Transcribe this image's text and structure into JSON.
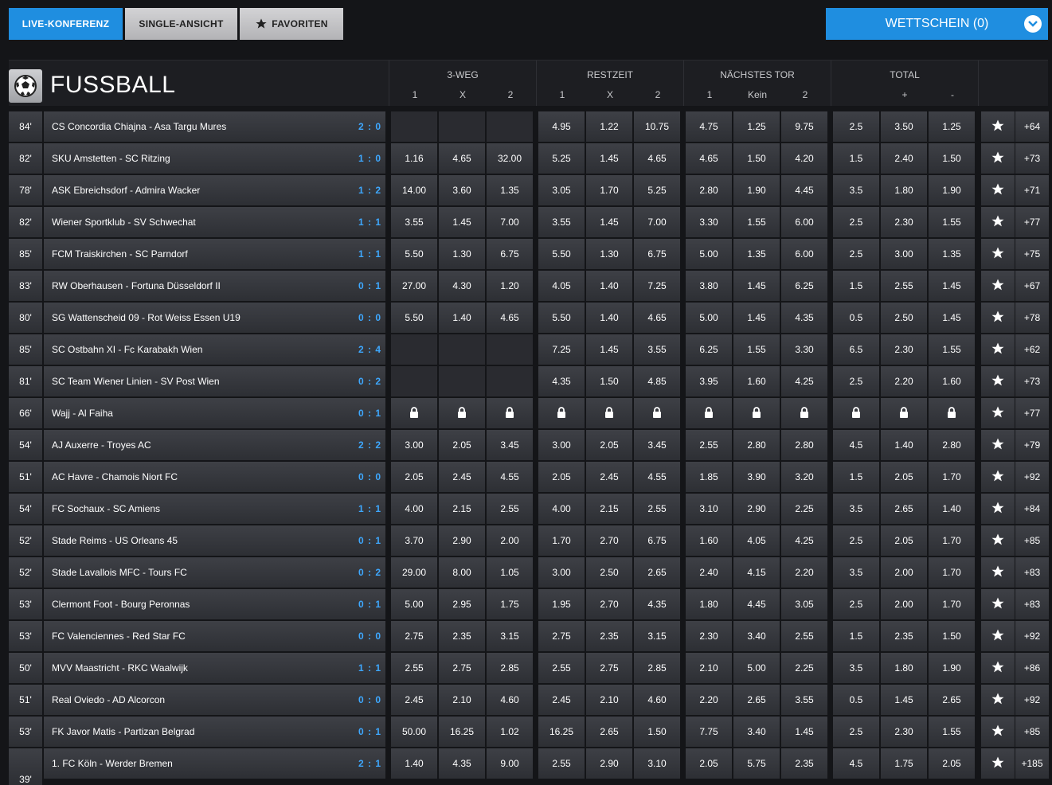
{
  "tabs": [
    {
      "label": "LIVE-KONFERENZ",
      "active": true
    },
    {
      "label": "SINGLE-ANSICHT",
      "active": false
    },
    {
      "label": "FAVORITEN",
      "active": false,
      "icon": "star-icon"
    }
  ],
  "betslip": {
    "label": "WETTSCHEIN (0)",
    "icon": "chevron-down-icon"
  },
  "sport": {
    "title": "FUSSBALL",
    "icon": "soccer-ball-icon"
  },
  "markets": [
    {
      "title": "3-WEG",
      "cols": [
        "1",
        "X",
        "2"
      ]
    },
    {
      "title": "RESTZEIT",
      "cols": [
        "1",
        "X",
        "2"
      ]
    },
    {
      "title": "NÄCHSTES TOR",
      "cols": [
        "1",
        "Kein",
        "2"
      ]
    },
    {
      "title": "TOTAL",
      "cols": [
        "+",
        "-"
      ]
    }
  ],
  "matches": [
    {
      "minute": "84'",
      "teams": "CS Concordia Chiajna - Asa Targu Mures",
      "score": "2 : 0",
      "odds": [
        "",
        "",
        "",
        "4.95",
        "1.22",
        "10.75",
        "4.75",
        "1.25",
        "9.75",
        "2.5",
        "3.50",
        "1.25"
      ],
      "more": "+64"
    },
    {
      "minute": "82'",
      "teams": "SKU Amstetten - SC Ritzing",
      "score": "1 : 0",
      "odds": [
        "1.16",
        "4.65",
        "32.00",
        "5.25",
        "1.45",
        "4.65",
        "4.65",
        "1.50",
        "4.20",
        "1.5",
        "2.40",
        "1.50"
      ],
      "more": "+73"
    },
    {
      "minute": "78'",
      "teams": "ASK Ebreichsdorf - Admira Wacker",
      "score": "1 : 2",
      "odds": [
        "14.00",
        "3.60",
        "1.35",
        "3.05",
        "1.70",
        "5.25",
        "2.80",
        "1.90",
        "4.45",
        "3.5",
        "1.80",
        "1.90"
      ],
      "more": "+71"
    },
    {
      "minute": "82'",
      "teams": "Wiener Sportklub - SV Schwechat",
      "score": "1 : 1",
      "odds": [
        "3.55",
        "1.45",
        "7.00",
        "3.55",
        "1.45",
        "7.00",
        "3.30",
        "1.55",
        "6.00",
        "2.5",
        "2.30",
        "1.55"
      ],
      "more": "+77"
    },
    {
      "minute": "85'",
      "teams": "FCM Traiskirchen - SC Parndorf",
      "score": "1 : 1",
      "odds": [
        "5.50",
        "1.30",
        "6.75",
        "5.50",
        "1.30",
        "6.75",
        "5.00",
        "1.35",
        "6.00",
        "2.5",
        "3.00",
        "1.35"
      ],
      "more": "+75"
    },
    {
      "minute": "83'",
      "teams": "RW Oberhausen - Fortuna Düsseldorf II",
      "score": "0 : 1",
      "odds": [
        "27.00",
        "4.30",
        "1.20",
        "4.05",
        "1.40",
        "7.25",
        "3.80",
        "1.45",
        "6.25",
        "1.5",
        "2.55",
        "1.45"
      ],
      "more": "+67"
    },
    {
      "minute": "80'",
      "teams": "SG Wattenscheid 09 - Rot Weiss Essen U19",
      "score": "0 : 0",
      "odds": [
        "5.50",
        "1.40",
        "4.65",
        "5.50",
        "1.40",
        "4.65",
        "5.00",
        "1.45",
        "4.35",
        "0.5",
        "2.50",
        "1.45"
      ],
      "more": "+78"
    },
    {
      "minute": "85'",
      "teams": "SC Ostbahn XI - Fc Karabakh Wien",
      "score": "2 : 4",
      "odds": [
        "",
        "",
        "",
        "7.25",
        "1.45",
        "3.55",
        "6.25",
        "1.55",
        "3.30",
        "6.5",
        "2.30",
        "1.55"
      ],
      "more": "+62"
    },
    {
      "minute": "81'",
      "teams": "SC Team Wiener Linien - SV Post Wien",
      "score": "0 : 2",
      "odds": [
        "",
        "",
        "",
        "4.35",
        "1.50",
        "4.85",
        "3.95",
        "1.60",
        "4.25",
        "2.5",
        "2.20",
        "1.60"
      ],
      "more": "+73"
    },
    {
      "minute": "66'",
      "teams": "Wajj - Al Faiha",
      "score": "0 : 1",
      "odds": [
        "LOCK",
        "LOCK",
        "LOCK",
        "LOCK",
        "LOCK",
        "LOCK",
        "LOCK",
        "LOCK",
        "LOCK",
        "LOCK",
        "LOCK",
        "LOCK"
      ],
      "more": "+77"
    },
    {
      "minute": "54'",
      "teams": "AJ Auxerre - Troyes AC",
      "score": "2 : 2",
      "odds": [
        "3.00",
        "2.05",
        "3.45",
        "3.00",
        "2.05",
        "3.45",
        "2.55",
        "2.80",
        "2.80",
        "4.5",
        "1.40",
        "2.80"
      ],
      "more": "+79"
    },
    {
      "minute": "51'",
      "teams": "AC Havre - Chamois Niort FC",
      "score": "0 : 0",
      "odds": [
        "2.05",
        "2.45",
        "4.55",
        "2.05",
        "2.45",
        "4.55",
        "1.85",
        "3.90",
        "3.20",
        "1.5",
        "2.05",
        "1.70"
      ],
      "more": "+92"
    },
    {
      "minute": "54'",
      "teams": "FC Sochaux - SC Amiens",
      "score": "1 : 1",
      "odds": [
        "4.00",
        "2.15",
        "2.55",
        "4.00",
        "2.15",
        "2.55",
        "3.10",
        "2.90",
        "2.25",
        "3.5",
        "2.65",
        "1.40"
      ],
      "more": "+84"
    },
    {
      "minute": "52'",
      "teams": "Stade Reims - US Orleans 45",
      "score": "0 : 1",
      "odds": [
        "3.70",
        "2.90",
        "2.00",
        "1.70",
        "2.70",
        "6.75",
        "1.60",
        "4.05",
        "4.25",
        "2.5",
        "2.05",
        "1.70"
      ],
      "more": "+85"
    },
    {
      "minute": "52'",
      "teams": "Stade Lavallois MFC - Tours FC",
      "score": "0 : 2",
      "odds": [
        "29.00",
        "8.00",
        "1.05",
        "3.00",
        "2.50",
        "2.65",
        "2.40",
        "4.15",
        "2.20",
        "3.5",
        "2.00",
        "1.70"
      ],
      "more": "+83"
    },
    {
      "minute": "53'",
      "teams": "Clermont Foot - Bourg Peronnas",
      "score": "0 : 1",
      "odds": [
        "5.00",
        "2.95",
        "1.75",
        "1.95",
        "2.70",
        "4.35",
        "1.80",
        "4.45",
        "3.05",
        "2.5",
        "2.00",
        "1.70"
      ],
      "more": "+83"
    },
    {
      "minute": "53'",
      "teams": "FC Valenciennes - Red Star FC",
      "score": "0 : 0",
      "odds": [
        "2.75",
        "2.35",
        "3.15",
        "2.75",
        "2.35",
        "3.15",
        "2.30",
        "3.40",
        "2.55",
        "1.5",
        "2.35",
        "1.50"
      ],
      "more": "+92"
    },
    {
      "minute": "50'",
      "teams": "MVV Maastricht - RKC Waalwijk",
      "score": "1 : 1",
      "odds": [
        "2.55",
        "2.75",
        "2.85",
        "2.55",
        "2.75",
        "2.85",
        "2.10",
        "5.00",
        "2.25",
        "3.5",
        "1.80",
        "1.90"
      ],
      "more": "+86"
    },
    {
      "minute": "51'",
      "teams": "Real Oviedo - AD Alcorcon",
      "score": "0 : 0",
      "odds": [
        "2.45",
        "2.10",
        "4.60",
        "2.45",
        "2.10",
        "4.60",
        "2.20",
        "2.65",
        "3.55",
        "0.5",
        "1.45",
        "2.65"
      ],
      "more": "+92"
    },
    {
      "minute": "53'",
      "teams": "FK Javor Matis - Partizan Belgrad",
      "score": "0 : 1",
      "odds": [
        "50.00",
        "16.25",
        "1.02",
        "16.25",
        "2.65",
        "1.50",
        "7.75",
        "3.40",
        "1.45",
        "2.5",
        "2.30",
        "1.55"
      ],
      "more": "+85"
    },
    {
      "minute": "39'",
      "teams": "1. FC Köln - Werder Bremen",
      "score": "2 : 1",
      "odds": [
        "1.40",
        "4.35",
        "9.00",
        "2.55",
        "2.90",
        "3.10",
        "2.05",
        "5.75",
        "2.35",
        "4.5",
        "1.75",
        "2.05"
      ],
      "more": "+185"
    }
  ]
}
